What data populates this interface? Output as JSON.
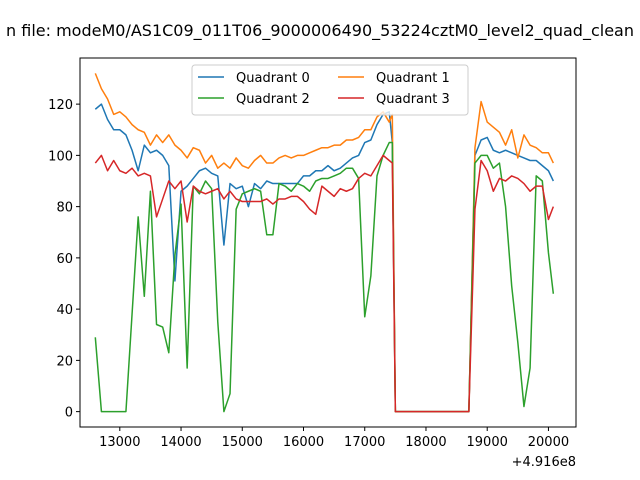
{
  "chart_data": {
    "type": "line",
    "title": "n file: modeM0/AS1C09_011T06_9000006490_53224cztM0_level2_quad_clean",
    "xlabel": "",
    "ylabel": "",
    "x_offset_label": "+4.916e8",
    "xlim": [
      12350,
      20450
    ],
    "ylim": [
      -6,
      138
    ],
    "xticks": [
      13000,
      14000,
      15000,
      16000,
      17000,
      18000,
      19000,
      20000
    ],
    "yticks": [
      0,
      20,
      40,
      60,
      80,
      100,
      120
    ],
    "grid": false,
    "legend_position": "top-center",
    "legend_columns": 2,
    "x": [
      12600,
      12700,
      12800,
      12900,
      13000,
      13100,
      13200,
      13300,
      13400,
      13500,
      13600,
      13700,
      13800,
      13900,
      14000,
      14100,
      14200,
      14300,
      14400,
      14500,
      14600,
      14700,
      14800,
      14900,
      15000,
      15100,
      15200,
      15300,
      15400,
      15500,
      15600,
      15700,
      15800,
      15900,
      16000,
      16100,
      16200,
      16300,
      16400,
      16500,
      16600,
      16700,
      16800,
      16900,
      17000,
      17100,
      17200,
      17300,
      17400,
      17450,
      17500,
      17600,
      17700,
      17800,
      17900,
      18000,
      18100,
      18200,
      18300,
      18400,
      18500,
      18600,
      18700,
      18800,
      18900,
      19000,
      19100,
      19200,
      19300,
      19400,
      19500,
      19600,
      19700,
      19800,
      19900,
      20000,
      20080
    ],
    "series": [
      {
        "name": "Quadrant 0",
        "color": "#1f77b4",
        "values": [
          118,
          120,
          114,
          110,
          110,
          108,
          102,
          94,
          104,
          101,
          102,
          100,
          96,
          51,
          86,
          88,
          91,
          94,
          95,
          93,
          92,
          65,
          89,
          87,
          88,
          80,
          89,
          87,
          90,
          89,
          89,
          89,
          89,
          89,
          92,
          92,
          94,
          94,
          96,
          94,
          95,
          97,
          99,
          100,
          105,
          106,
          112,
          116,
          117,
          105,
          0,
          0,
          0,
          0,
          0,
          0,
          0,
          0,
          0,
          0,
          0,
          0,
          0,
          100,
          106,
          107,
          102,
          101,
          102,
          101,
          100,
          99,
          98,
          98,
          96,
          94,
          90
        ]
      },
      {
        "name": "Quadrant 1",
        "color": "#ff7f0e",
        "values": [
          132,
          126,
          122,
          116,
          117,
          115,
          112,
          110,
          109,
          104,
          108,
          105,
          108,
          104,
          102,
          99,
          103,
          102,
          97,
          100,
          95,
          97,
          95,
          99,
          96,
          95,
          98,
          100,
          97,
          97,
          99,
          100,
          99,
          100,
          100,
          101,
          102,
          103,
          103,
          104,
          104,
          106,
          106,
          107,
          110,
          110,
          115,
          117,
          113,
          116,
          0,
          0,
          0,
          0,
          0,
          0,
          0,
          0,
          0,
          0,
          0,
          0,
          0,
          103,
          121,
          113,
          111,
          109,
          104,
          110,
          99,
          108,
          104,
          103,
          101,
          101,
          97
        ]
      },
      {
        "name": "Quadrant 2",
        "color": "#2ca02c",
        "values": [
          29,
          0,
          0,
          0,
          0,
          0,
          38,
          76,
          45,
          86,
          34,
          33,
          23,
          61,
          81,
          17,
          88,
          85,
          90,
          87,
          35,
          0,
          7,
          79,
          85,
          86,
          87,
          86,
          69,
          69,
          89,
          88,
          86,
          89,
          88,
          86,
          90,
          91,
          91,
          92,
          93,
          95,
          95,
          91,
          37,
          53,
          92,
          100,
          105,
          105,
          0,
          0,
          0,
          0,
          0,
          0,
          0,
          0,
          0,
          0,
          0,
          0,
          0,
          97,
          100,
          100,
          95,
          97,
          80,
          49,
          27,
          2,
          17,
          92,
          90,
          62,
          46
        ]
      },
      {
        "name": "Quadrant 3",
        "color": "#d62728",
        "values": [
          97,
          100,
          94,
          98,
          94,
          93,
          95,
          92,
          93,
          92,
          76,
          83,
          90,
          87,
          90,
          74,
          88,
          86,
          85,
          86,
          87,
          83,
          86,
          83,
          82,
          82,
          82,
          82,
          83,
          81,
          83,
          83,
          84,
          84,
          82,
          79,
          77,
          88,
          86,
          84,
          87,
          86,
          87,
          91,
          93,
          92,
          96,
          100,
          98,
          97,
          0,
          0,
          0,
          0,
          0,
          0,
          0,
          0,
          0,
          0,
          0,
          0,
          0,
          79,
          98,
          94,
          86,
          91,
          90,
          92,
          91,
          89,
          86,
          88,
          88,
          75,
          80
        ]
      }
    ]
  }
}
